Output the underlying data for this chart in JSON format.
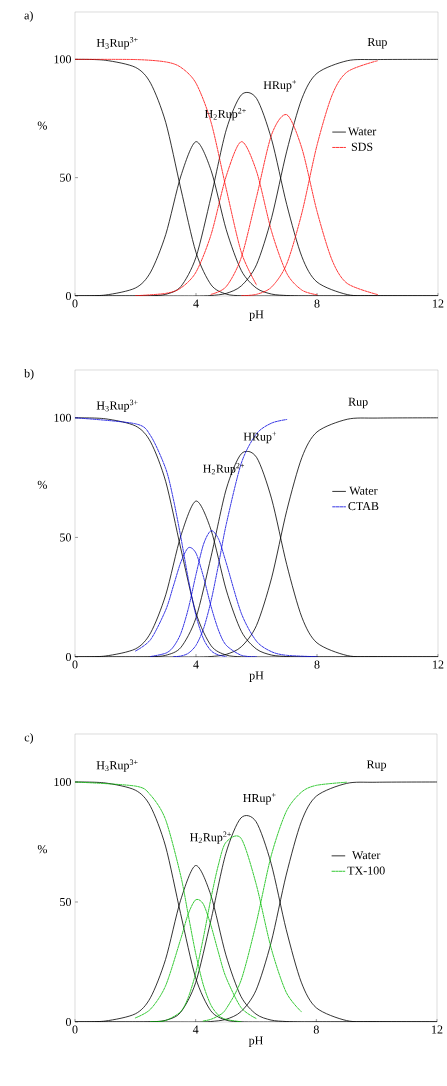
{
  "chart_data": [
    {
      "type": "line",
      "title": "a)",
      "xlabel": "pH",
      "ylabel": "%",
      "xlim": [
        0,
        12
      ],
      "ylim": [
        0,
        120
      ],
      "xticks": [
        0,
        4,
        8,
        12
      ],
      "yticks": [
        0,
        50,
        100
      ],
      "legend": "right",
      "annotations": [
        "H$_{3}$Rup$^{3+}$",
        "H$_{2}$Rup$^{2+}$",
        "HRup$^{+}$",
        "Rup"
      ],
      "series": [
        {
          "name": "Water",
          "color": "#000000",
          "line_style": "solid",
          "x": [
            0,
            1,
            2,
            2.5,
            3,
            3.5,
            4,
            4.5,
            5,
            5.5,
            6,
            6.5,
            7,
            7.5,
            8,
            9,
            10,
            12
          ],
          "values": [
            100,
            99.6,
            96.6,
            89.9,
            73.3,
            45.2,
            18.4,
            4.7,
            0.8,
            0.1,
            0,
            0,
            0,
            0,
            0,
            0,
            0,
            0
          ]
        },
        {
          "color": "#000000",
          "line_style": "solid",
          "x": [
            0,
            1,
            2,
            2.5,
            3,
            3.5,
            4,
            4.5,
            5,
            5.5,
            6,
            6.5,
            7,
            7.5,
            8,
            9,
            10,
            12
          ],
          "values": [
            0,
            0.4,
            3.4,
            10.1,
            26.0,
            50.7,
            65.2,
            53.0,
            28.0,
            10.7,
            3.3,
            0.8,
            0.2,
            0,
            0,
            0,
            0,
            0
          ]
        },
        {
          "color": "#000000",
          "line_style": "solid",
          "x": [
            0,
            1,
            2,
            2.5,
            3,
            3.5,
            4,
            4.5,
            5,
            5.5,
            6,
            6.5,
            7,
            7.5,
            8,
            9,
            10,
            12
          ],
          "values": [
            0,
            0,
            0,
            0.1,
            0.7,
            4.0,
            16.4,
            42.1,
            70.2,
            85.0,
            83.5,
            66.1,
            38.6,
            16.6,
            5.9,
            0.6,
            0.1,
            0
          ]
        },
        {
          "color": "#000000",
          "line_style": "solid",
          "x": [
            0,
            1,
            2,
            2.5,
            3,
            3.5,
            4,
            4.5,
            5,
            5.5,
            6,
            6.5,
            7,
            7.5,
            8,
            9,
            10,
            12
          ],
          "values": [
            0,
            0,
            0,
            0,
            0,
            0,
            0,
            0.2,
            1.1,
            4.3,
            13.2,
            33.1,
            61.2,
            83.4,
            94.1,
            99.4,
            99.9,
            100
          ]
        },
        {
          "name": "SDS",
          "color": "#ff0000",
          "line_style": "dashed",
          "x": [
            0,
            2,
            3,
            3.5,
            4,
            4.5,
            5,
            5.5,
            6
          ],
          "values": [
            100,
            99.9,
            98.9,
            96.6,
            89.9,
            73.3,
            45.2,
            18.4,
            4.7
          ]
        },
        {
          "color": "#ff0000",
          "line_style": "dashed",
          "x": [
            2,
            3,
            3.5,
            4,
            4.5,
            5,
            5.5,
            6,
            6.5,
            7,
            7.5,
            8
          ],
          "values": [
            0.1,
            1.1,
            3.4,
            10.1,
            26.0,
            50.7,
            65.2,
            52.7,
            27.2,
            9.6,
            2.5,
            0.5
          ]
        },
        {
          "color": "#ff0000",
          "line_style": "dashed",
          "x": [
            4.5,
            5,
            5.5,
            6,
            6.5,
            7,
            7.5,
            8,
            8.5,
            9,
            10
          ],
          "values": [
            0.7,
            4.0,
            16.4,
            41.8,
            68.2,
            76.6,
            62.4,
            35.8,
            15.1,
            5.3,
            0.6
          ]
        },
        {
          "color": "#ff0000",
          "line_style": "dashed",
          "x": [
            5.5,
            6,
            6.5,
            7,
            7.5,
            8,
            8.5,
            9,
            10
          ],
          "values": [
            0.1,
            0.7,
            3.8,
            13.6,
            35.1,
            63.7,
            84.9,
            94.7,
            99.4
          ]
        }
      ]
    },
    {
      "type": "line",
      "title": "b)",
      "xlabel": "pH",
      "ylabel": "%",
      "xlim": [
        0,
        12
      ],
      "ylim": [
        0,
        120
      ],
      "xticks": [
        0,
        4,
        8,
        12
      ],
      "yticks": [
        0,
        50,
        100
      ],
      "legend": "right",
      "annotations": [
        "H$_{3}$Rup$^{3+}$",
        "H$_{2}$Rup$^{2+}$",
        "HRup$^{+}$",
        "Rup"
      ],
      "series": [
        {
          "name": "Water",
          "color": "#000000",
          "line_style": "solid",
          "x": [
            0,
            1,
            2,
            2.5,
            3,
            3.5,
            4,
            4.5,
            5,
            5.5,
            6,
            6.5,
            7,
            7.5,
            8,
            9,
            10,
            12
          ],
          "values": [
            100,
            99.6,
            96.6,
            89.9,
            73.3,
            45.2,
            18.4,
            4.7,
            0.8,
            0.1,
            0,
            0,
            0,
            0,
            0,
            0,
            0,
            0
          ]
        },
        {
          "color": "#000000",
          "line_style": "solid",
          "x": [
            0,
            1,
            2,
            2.5,
            3,
            3.5,
            4,
            4.5,
            5,
            5.5,
            6,
            6.5,
            7,
            7.5,
            8,
            9,
            10,
            12
          ],
          "values": [
            0,
            0.4,
            3.4,
            10.1,
            26.0,
            50.7,
            65.2,
            53.0,
            28.0,
            10.7,
            3.3,
            0.8,
            0.2,
            0,
            0,
            0,
            0,
            0
          ]
        },
        {
          "color": "#000000",
          "line_style": "solid",
          "x": [
            0,
            1,
            2,
            2.5,
            3,
            3.5,
            4,
            4.5,
            5,
            5.5,
            6,
            6.5,
            7,
            7.5,
            8,
            9,
            10,
            12
          ],
          "values": [
            0,
            0,
            0,
            0.1,
            0.7,
            4.0,
            16.4,
            42.1,
            70.2,
            85.0,
            83.5,
            66.1,
            38.6,
            16.6,
            5.9,
            0.6,
            0.1,
            0
          ]
        },
        {
          "color": "#000000",
          "line_style": "solid",
          "x": [
            0,
            1,
            2,
            2.5,
            3,
            3.5,
            4,
            4.5,
            5,
            5.5,
            6,
            6.5,
            7,
            7.5,
            8,
            9,
            10,
            12
          ],
          "values": [
            0,
            0,
            0,
            0,
            0,
            0,
            0,
            0.2,
            1.1,
            4.3,
            13.2,
            33.1,
            61.2,
            83.4,
            94.1,
            99.4,
            99.9,
            100
          ]
        },
        {
          "name": "CTAB",
          "color": "#0000dd",
          "line_style": "dashed",
          "x": [
            0,
            2,
            2.5,
            3,
            3.25,
            3.5,
            3.75,
            4,
            4.25,
            4.5,
            4.75,
            5
          ],
          "values": [
            100,
            97.5,
            92.5,
            78.7,
            66.1,
            50.0,
            32.3,
            17.3,
            7.5,
            2.6,
            0.8,
            0.2
          ]
        },
        {
          "color": "#0000dd",
          "line_style": "dashed",
          "x": [
            2,
            2.5,
            3,
            3.25,
            3.5,
            3.75,
            4,
            4.25,
            4.5,
            4.75,
            5,
            5.5,
            6
          ],
          "values": [
            2.5,
            7.3,
            19.7,
            29.6,
            39.7,
            45.7,
            43.4,
            33.4,
            21.0,
            11.0,
            4.9,
            0.7,
            0.1
          ]
        },
        {
          "color": "#0000dd",
          "line_style": "dashed",
          "x": [
            2.5,
            3,
            3.25,
            3.5,
            3.75,
            4,
            4.25,
            4.5,
            4.75,
            5,
            5.5,
            6,
            6.5,
            7,
            8
          ],
          "values": [
            0.2,
            1.6,
            4.2,
            9.9,
            20.4,
            34.5,
            47.2,
            52.8,
            49.2,
            39.3,
            18.2,
            6.6,
            2.2,
            0.7,
            0.1
          ]
        },
        {
          "color": "#0000dd",
          "line_style": "dashed",
          "x": [
            3.25,
            3.5,
            3.75,
            4,
            4.25,
            4.5,
            4.75,
            5,
            5.5,
            6,
            6.5,
            7
          ],
          "values": [
            0.1,
            0.4,
            1.6,
            4.9,
            11.9,
            23.6,
            39.0,
            55.5,
            81.1,
            93.3,
            97.8,
            99.3
          ]
        }
      ]
    },
    {
      "type": "line",
      "title": "c)",
      "xlabel": "pH",
      "ylabel": "%",
      "xlim": [
        0,
        12
      ],
      "ylim": [
        0,
        120
      ],
      "xticks": [
        0,
        4,
        8,
        12
      ],
      "yticks": [
        0,
        50,
        100
      ],
      "legend": "right",
      "annotations": [
        "H$_{3}$Rup$^{3+}$",
        "H$_{2}$Rup$^{2+}$",
        "HRup$^{+}$",
        "Rup"
      ],
      "series": [
        {
          "name": "Water",
          "color": "#000000",
          "line_style": "solid",
          "x": [
            0,
            1,
            2,
            2.5,
            3,
            3.5,
            4,
            4.5,
            5,
            5.5,
            6,
            6.5,
            7,
            7.5,
            8,
            9,
            10,
            12
          ],
          "values": [
            100,
            99.6,
            96.6,
            89.9,
            73.3,
            45.2,
            18.4,
            4.7,
            0.8,
            0.1,
            0,
            0,
            0,
            0,
            0,
            0,
            0,
            0
          ]
        },
        {
          "color": "#000000",
          "line_style": "solid",
          "x": [
            0,
            1,
            2,
            2.5,
            3,
            3.5,
            4,
            4.5,
            5,
            5.5,
            6,
            6.5,
            7,
            7.5,
            8,
            9,
            10,
            12
          ],
          "values": [
            0,
            0.4,
            3.4,
            10.1,
            26.0,
            50.7,
            65.2,
            53.0,
            28.0,
            10.7,
            3.3,
            0.8,
            0.2,
            0,
            0,
            0,
            0,
            0
          ]
        },
        {
          "color": "#000000",
          "line_style": "solid",
          "x": [
            0,
            1,
            2,
            2.5,
            3,
            3.5,
            4,
            4.5,
            5,
            5.5,
            6,
            6.5,
            7,
            7.5,
            8,
            9,
            10,
            12
          ],
          "values": [
            0,
            0,
            0,
            0.1,
            0.7,
            4.0,
            16.4,
            42.1,
            70.2,
            85.0,
            83.5,
            66.1,
            38.6,
            16.6,
            5.9,
            0.6,
            0.1,
            0
          ]
        },
        {
          "color": "#000000",
          "line_style": "solid",
          "x": [
            0,
            1,
            2,
            2.5,
            3,
            3.5,
            4,
            4.5,
            5,
            5.5,
            6,
            6.5,
            7,
            7.5,
            8,
            9,
            10,
            12
          ],
          "values": [
            0,
            0,
            0,
            0,
            0,
            0,
            0,
            0.2,
            1.1,
            4.3,
            13.2,
            33.1,
            61.2,
            83.4,
            94.1,
            99.4,
            99.9,
            100
          ]
        },
        {
          "name": "TX-100",
          "color": "#00bb00",
          "line_style": "dashed",
          "x": [
            0,
            2,
            2.5,
            3,
            3.5,
            3.75,
            4,
            4.25,
            4.5,
            4.75,
            5,
            5.5
          ],
          "values": [
            100,
            98.3,
            94.6,
            84.4,
            61.2,
            44.9,
            28.6,
            15.6,
            7.2,
            2.9,
            1.1,
            0.1
          ]
        },
        {
          "color": "#00bb00",
          "line_style": "dashed",
          "x": [
            2,
            2.5,
            3,
            3.5,
            3.75,
            4,
            4.25,
            4.5,
            4.75,
            5,
            5.5,
            6
          ],
          "values": [
            1.7,
            5.3,
            15.0,
            34.4,
            44.9,
            50.9,
            49.2,
            40.5,
            29.2,
            18.8,
            6.1,
            1.5
          ]
        },
        {
          "color": "#00bb00",
          "line_style": "dashed",
          "x": [
            2.5,
            3,
            3.5,
            3.75,
            4,
            4.25,
            4.5,
            4.75,
            5,
            5.5,
            6,
            6.5,
            7,
            7.5
          ],
          "values": [
            0.1,
            0.6,
            4.3,
            10.1,
            20.3,
            34.8,
            51.1,
            65.3,
            74.8,
            76.6,
            57.7,
            30.9,
            12.4,
            4.3
          ]
        },
        {
          "color": "#00bb00",
          "line_style": "dashed",
          "x": [
            4.25,
            4.5,
            4.75,
            5,
            5.5,
            6,
            6.5,
            7,
            7.5,
            8,
            9
          ],
          "values": [
            0.4,
            1.1,
            2.6,
            5.3,
            17.2,
            40.8,
            69.1,
            87.6,
            95.7,
            98.6,
            99.9
          ]
        }
      ]
    }
  ]
}
